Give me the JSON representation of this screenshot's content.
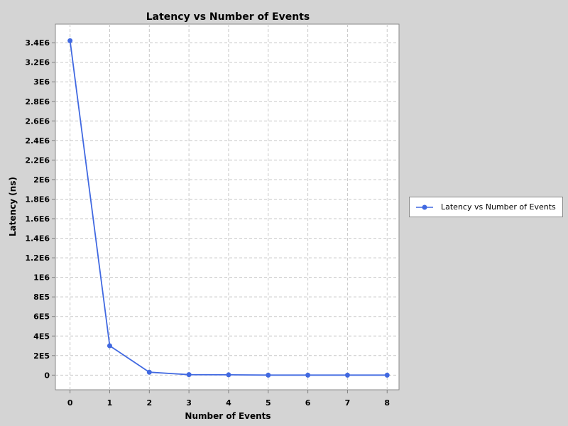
{
  "chart_data": {
    "type": "line",
    "title": "Latency vs Number of Events",
    "xlabel": "Number of Events",
    "ylabel": "Latency (ns)",
    "x_ticks": [
      "0",
      "1",
      "2",
      "3",
      "4",
      "5",
      "6",
      "7",
      "8"
    ],
    "y_ticks": [
      "0",
      "2E5",
      "4E5",
      "6E5",
      "8E5",
      "1E6",
      "1.2E6",
      "1.4E6",
      "1.6E6",
      "1.8E6",
      "2E6",
      "2.2E6",
      "2.4E6",
      "2.6E6",
      "2.8E6",
      "3E6",
      "3.2E6",
      "3.4E6"
    ],
    "xlim": [
      -0.37,
      8.3
    ],
    "ylim": [
      -150000,
      3590000
    ],
    "grid": true,
    "legend_position": "right",
    "series": [
      {
        "name": "Latency vs Number of Events",
        "color": "#4169e1",
        "x": [
          0,
          1,
          2,
          3,
          4,
          5,
          6,
          7,
          8
        ],
        "y": [
          3420000,
          300000,
          30000,
          5000,
          3000,
          0,
          0,
          0,
          0
        ]
      }
    ]
  }
}
